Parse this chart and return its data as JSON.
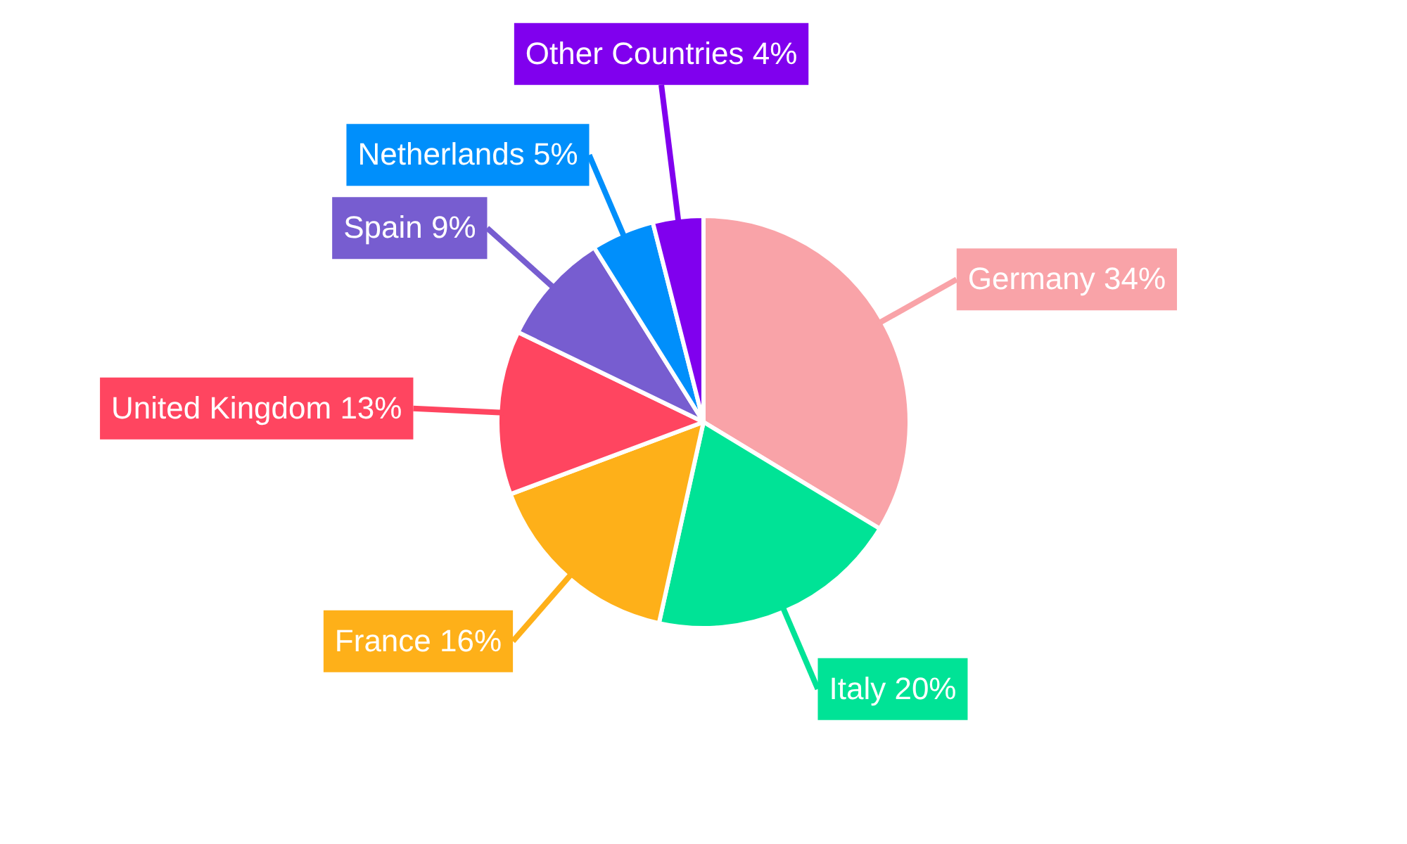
{
  "chart_data": {
    "type": "pie",
    "categories": [
      "Germany",
      "Italy",
      "France",
      "United Kingdom",
      "Spain",
      "Netherlands",
      "Other Countries"
    ],
    "values": [
      34,
      20,
      16,
      13,
      9,
      5,
      4
    ],
    "value_labels": [
      "34%",
      "20%",
      "16%",
      "13%",
      "9%",
      "5%",
      "4%"
    ],
    "colors": [
      "#f9a3a8",
      "#00e396",
      "#feb019",
      "#ff4560",
      "#775dd0",
      "#008ffb",
      "#8000ee"
    ],
    "legend": false
  }
}
